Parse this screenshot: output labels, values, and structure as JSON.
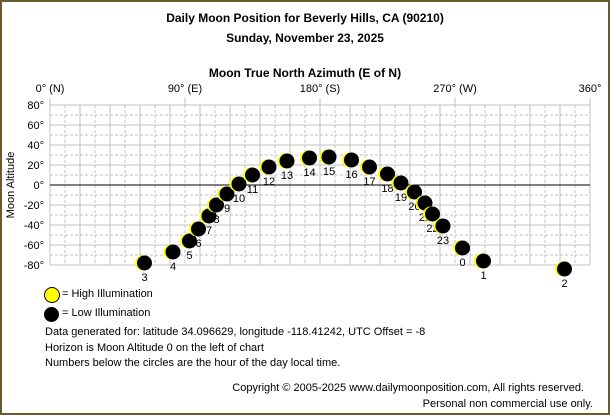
{
  "title": "Daily Moon Position for Beverly Hills, CA (90210)",
  "subtitle": "Sunday, November 23, 2025",
  "chart_data": {
    "type": "scatter",
    "xlabel": "Moon True North Azimuth (E of N)",
    "ylabel": "Moon Altitude",
    "xlim": [
      0,
      360
    ],
    "ylim": [
      -80,
      80
    ],
    "x_ticks": [
      {
        "value": 0,
        "label": "0° (N)"
      },
      {
        "value": 90,
        "label": "90° (E)"
      },
      {
        "value": 180,
        "label": "180° (S)"
      },
      {
        "value": 270,
        "label": "270° (W)"
      },
      {
        "value": 360,
        "label": "360°"
      }
    ],
    "y_ticks": [
      {
        "value": 80,
        "label": "80°"
      },
      {
        "value": 60,
        "label": "60°"
      },
      {
        "value": 40,
        "label": "40°"
      },
      {
        "value": 20,
        "label": "20°"
      },
      {
        "value": 0,
        "label": "0°"
      },
      {
        "value": -20,
        "label": "-20°"
      },
      {
        "value": -40,
        "label": "-40°"
      },
      {
        "value": -60,
        "label": "-60°"
      },
      {
        "value": -80,
        "label": "-80°"
      }
    ],
    "grid": true,
    "horizon_line": 0,
    "points": [
      {
        "hour": "3",
        "azimuth": 63,
        "altitude": -78
      },
      {
        "hour": "4",
        "azimuth": 82,
        "altitude": -67
      },
      {
        "hour": "5",
        "azimuth": 93,
        "altitude": -56
      },
      {
        "hour": "6",
        "azimuth": 99,
        "altitude": -44
      },
      {
        "hour": "7",
        "azimuth": 106,
        "altitude": -31
      },
      {
        "hour": "8",
        "azimuth": 111,
        "altitude": -20
      },
      {
        "hour": "9",
        "azimuth": 118,
        "altitude": -9
      },
      {
        "hour": "10",
        "azimuth": 126,
        "altitude": 1
      },
      {
        "hour": "11",
        "azimuth": 135,
        "altitude": 10
      },
      {
        "hour": "12",
        "azimuth": 146,
        "altitude": 18
      },
      {
        "hour": "13",
        "azimuth": 158,
        "altitude": 24
      },
      {
        "hour": "14",
        "azimuth": 173,
        "altitude": 27
      },
      {
        "hour": "15",
        "azimuth": 186,
        "altitude": 28
      },
      {
        "hour": "16",
        "azimuth": 201,
        "altitude": 25
      },
      {
        "hour": "17",
        "azimuth": 213,
        "altitude": 18
      },
      {
        "hour": "18",
        "azimuth": 225,
        "altitude": 11
      },
      {
        "hour": "19",
        "azimuth": 234,
        "altitude": 2
      },
      {
        "hour": "20",
        "azimuth": 243,
        "altitude": -7
      },
      {
        "hour": "21",
        "azimuth": 250,
        "altitude": -18
      },
      {
        "hour": "22",
        "azimuth": 255,
        "altitude": -29
      },
      {
        "hour": "23",
        "azimuth": 262,
        "altitude": -41
      },
      {
        "hour": "0",
        "azimuth": 275,
        "altitude": -63
      },
      {
        "hour": "1",
        "azimuth": 289,
        "altitude": -76
      },
      {
        "hour": "2",
        "azimuth": 343,
        "altitude": -84
      }
    ],
    "colors": {
      "high": "#ffff00",
      "low": "#000000",
      "grid": "#c0c0c0"
    }
  },
  "legend": {
    "high": "= High Illumination",
    "low": "= Low Illumination"
  },
  "notes": [
    "Data generated for: latitude 34.096629, longitude -118.41242, UTC Offset = -8",
    "Horizon is Moon Altitude 0 on the left of chart",
    "Numbers below the circles are the hour of the day local time."
  ],
  "copyright": "Copyright © 2005-2025 www.dailymoonposition.com, All rights reserved.",
  "usage": "Personal non commercial use only."
}
